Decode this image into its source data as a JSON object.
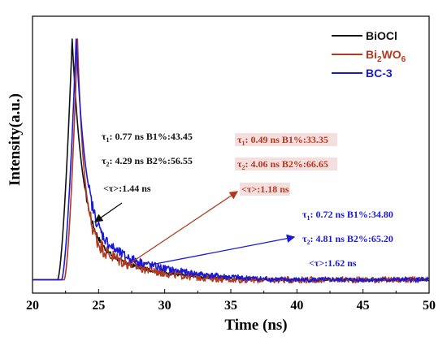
{
  "chart_data": {
    "type": "line",
    "xlabel": "Time (ns)",
    "ylabel": "Intensity(a.u.)",
    "xlim": [
      20,
      50
    ],
    "ylim": [
      0,
      1
    ],
    "xticks": [
      20,
      25,
      30,
      35,
      40,
      45,
      50
    ],
    "yticks_shown": false,
    "grid": false,
    "legend_position": "top-right",
    "series": [
      {
        "name": "BiOCl",
        "name_subs": [],
        "color": "#111111",
        "t0": 21.9,
        "tp": 23.0,
        "tau1": 0.77,
        "tau2": 4.29,
        "b1": 43.45,
        "b2": 56.55,
        "noise": 0.004,
        "x": [
          20,
          21.9,
          23.0,
          24,
          25,
          27,
          30,
          35,
          40,
          45,
          50
        ],
        "y": [
          0.01,
          0.01,
          1.0,
          0.42,
          0.26,
          0.13,
          0.055,
          0.02,
          0.012,
          0.01,
          0.01
        ]
      },
      {
        "name_parts": [
          "Bi",
          "2",
          "WO",
          "6"
        ],
        "name": "Bi2WO6",
        "color": "#b23a1f",
        "t0": 22.4,
        "tp": 23.4,
        "tau1": 0.49,
        "tau2": 4.06,
        "b1": 33.35,
        "b2": 66.65,
        "noise": 0.012,
        "x": [
          20,
          22.4,
          23.4,
          24,
          25,
          27,
          30,
          35,
          40,
          45,
          50
        ],
        "y": [
          0.01,
          0.01,
          1.0,
          0.55,
          0.32,
          0.15,
          0.06,
          0.022,
          0.014,
          0.012,
          0.011
        ]
      },
      {
        "name": "BC-3",
        "name_subs": [],
        "color": "#1a1ad6",
        "t0": 22.2,
        "tp": 23.3,
        "tau1": 0.72,
        "tau2": 4.81,
        "b1": 34.8,
        "b2": 65.2,
        "noise": 0.009,
        "x": [
          20,
          22.2,
          23.3,
          24,
          25,
          27,
          30,
          35,
          40,
          45,
          50
        ],
        "y": [
          0.01,
          0.01,
          1.0,
          0.6,
          0.36,
          0.17,
          0.075,
          0.03,
          0.016,
          0.013,
          0.012
        ]
      }
    ],
    "annotations": [
      {
        "id": "bioc",
        "color": "#111111",
        "tau1": "0.77 ns",
        "b1": "B1%:43.45",
        "tau2": "4.29 ns",
        "b2": "B2%:56.55",
        "avg": "<τ>:1.44 ns"
      },
      {
        "id": "bwo",
        "color": "#b23a1f",
        "tau1": "0.49 ns",
        "b1": "B1%:33.35",
        "tau2": "4.06 ns",
        "b2": "B2%:66.65",
        "avg": "<τ>:1.18 ns"
      },
      {
        "id": "bc3",
        "color": "#1a1ad6",
        "tau1": "0.72 ns",
        "b1": "B1%:34.80",
        "tau2": "4.81 ns",
        "b2": "B2%:65.20",
        "avg": "<τ>:1.62 ns"
      }
    ],
    "tau_symbol": "τ",
    "tau_subs": [
      "1",
      "2"
    ]
  }
}
